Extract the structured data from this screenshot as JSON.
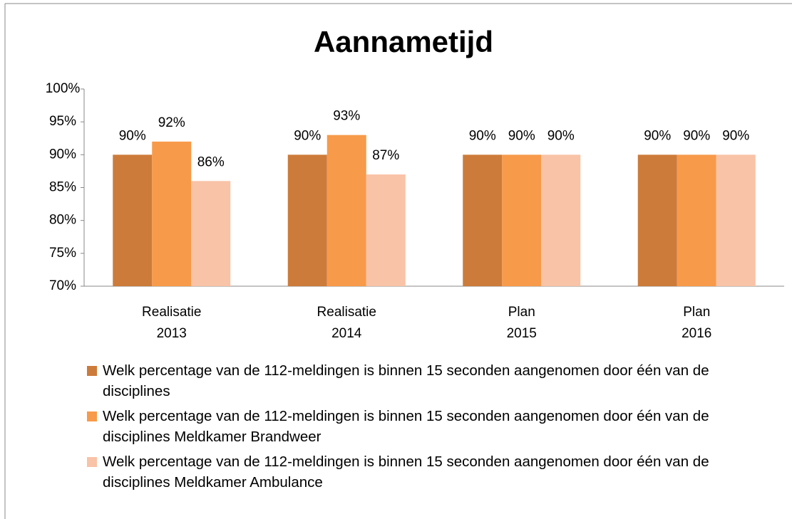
{
  "chart_data": {
    "type": "bar",
    "title": "Aannametijd",
    "categories": [
      [
        "Realisatie",
        "2013"
      ],
      [
        "Realisatie",
        "2014"
      ],
      [
        "Plan",
        "2015"
      ],
      [
        "Plan",
        "2016"
      ]
    ],
    "series": [
      {
        "name": "Welk percentage van de 112-meldingen is binnen 15 seconden aangenomen door één van de disciplines",
        "color": "#cd7b3a",
        "values": [
          90,
          90,
          90,
          90
        ],
        "value_labels": [
          "90%",
          "90%",
          "90%",
          "90%"
        ]
      },
      {
        "name": "Welk percentage van de 112-meldingen is binnen 15 seconden aangenomen door één van de disciplines Meldkamer Brandweer",
        "color": "#f79a4a",
        "values": [
          92,
          93,
          90,
          90
        ],
        "value_labels": [
          "92%",
          "93%",
          "90%",
          "90%"
        ]
      },
      {
        "name": "Welk percentage van de 112-meldingen is binnen 15 seconden aangenomen door één van de disciplines  Meldkamer Ambulance",
        "color": "#f9c3a7",
        "values": [
          86,
          87,
          90,
          90
        ],
        "value_labels": [
          "86%",
          "87%",
          "90%",
          "90%"
        ]
      }
    ],
    "ylim": [
      70,
      100
    ],
    "yticks": [
      {
        "value": 70,
        "label": "70%"
      },
      {
        "value": 75,
        "label": "75%"
      },
      {
        "value": 80,
        "label": "80%"
      },
      {
        "value": 85,
        "label": "85%"
      },
      {
        "value": 90,
        "label": "90%"
      },
      {
        "value": 95,
        "label": "95%"
      },
      {
        "value": 100,
        "label": "100%"
      }
    ],
    "legend": "bottom"
  }
}
